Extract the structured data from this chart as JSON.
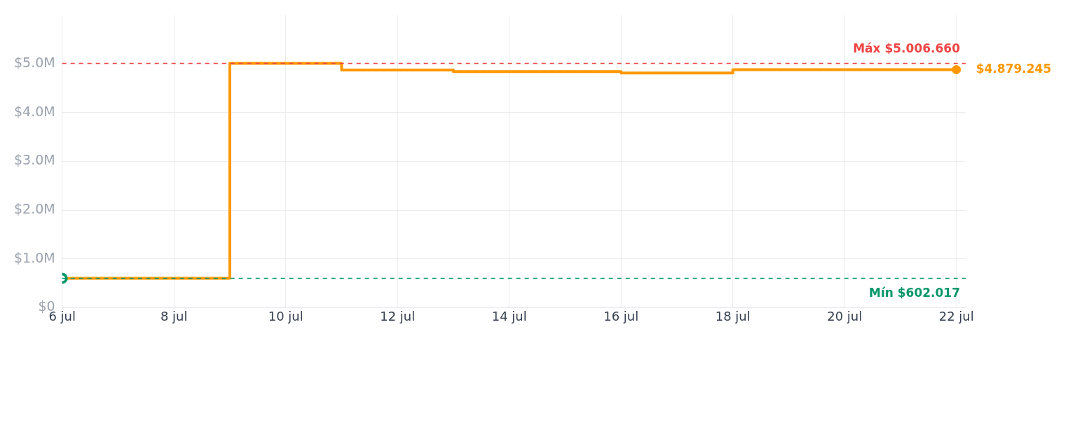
{
  "chart_data": {
    "type": "step",
    "x": [
      "--07-06",
      "--07-09",
      "--07-11",
      "--07-13",
      "--07-16",
      "--07-18",
      "--07-22"
    ],
    "series": [
      {
        "color": "#ff9800",
        "values": [
          602017,
          5006660,
          4870000,
          4840000,
          4810000,
          4879245,
          4879245
        ]
      }
    ],
    "xlim": [
      "--07-06",
      "--07-22T04:00"
    ],
    "xticks": [
      {
        "value": "--07-06",
        "label": "6 jul"
      },
      {
        "value": "--07-08",
        "label": "8 jul"
      },
      {
        "value": "--07-10",
        "label": "10 jul"
      },
      {
        "value": "--07-12",
        "label": "12 jul"
      },
      {
        "value": "--07-14",
        "label": "14 jul"
      },
      {
        "value": "--07-16",
        "label": "16 jul"
      },
      {
        "value": "--07-18",
        "label": "18 jul"
      },
      {
        "value": "--07-20",
        "label": "20 jul"
      },
      {
        "value": "--07-22",
        "label": "22 jul"
      }
    ],
    "ylim": [
      0,
      6000000
    ],
    "yticks": [
      {
        "value": 0,
        "label": "$0"
      },
      {
        "value": 1000000,
        "label": "$1.0M"
      },
      {
        "value": 2000000,
        "label": "$2.0M"
      },
      {
        "value": 3000000,
        "label": "$3.0M"
      },
      {
        "value": 4000000,
        "label": "$4.0M"
      },
      {
        "value": 5000000,
        "label": "$5.0M"
      }
    ],
    "ref_lines": [
      {
        "axis": "y",
        "value": 5006660,
        "label": "Máx $5.006.660",
        "color": "#ef4444",
        "line_style": "dashed"
      },
      {
        "axis": "y",
        "value": 602017,
        "label": "Mín $602.017",
        "color": "#059669",
        "line_style": "dashed"
      }
    ],
    "annotations": [
      {
        "text": "$4.879.245",
        "x": "--07-22",
        "y": 4879245
      }
    ],
    "grid": true,
    "line_style": "solid"
  }
}
